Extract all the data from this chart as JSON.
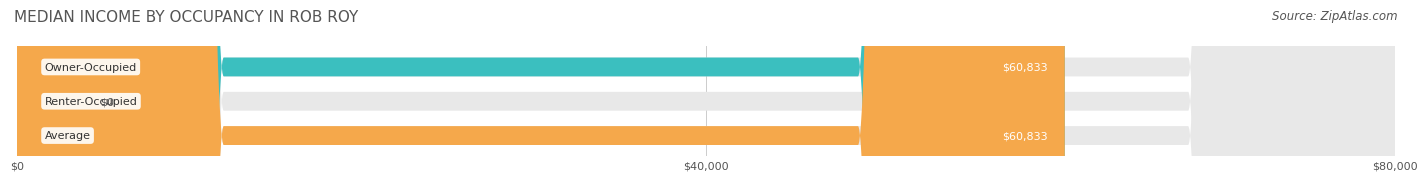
{
  "title": "MEDIAN INCOME BY OCCUPANCY IN ROB ROY",
  "source": "Source: ZipAtlas.com",
  "categories": [
    "Owner-Occupied",
    "Renter-Occupied",
    "Average"
  ],
  "values": [
    60833,
    0,
    60833
  ],
  "bar_colors": [
    "#3BBFBF",
    "#C9B8D8",
    "#F5A84B"
  ],
  "bar_bg_color": "#E8E8E8",
  "label_values": [
    "$60,833",
    "$0",
    "$60,833"
  ],
  "xlim": [
    0,
    80000
  ],
  "xticks": [
    0,
    40000,
    80000
  ],
  "xtick_labels": [
    "$0",
    "$40,000",
    "$80,000"
  ],
  "title_fontsize": 11,
  "source_fontsize": 8.5,
  "bar_label_fontsize": 8,
  "category_fontsize": 8,
  "tick_fontsize": 8,
  "bar_height": 0.55,
  "background_color": "#FFFFFF",
  "title_color": "#555555",
  "text_color": "#555555"
}
